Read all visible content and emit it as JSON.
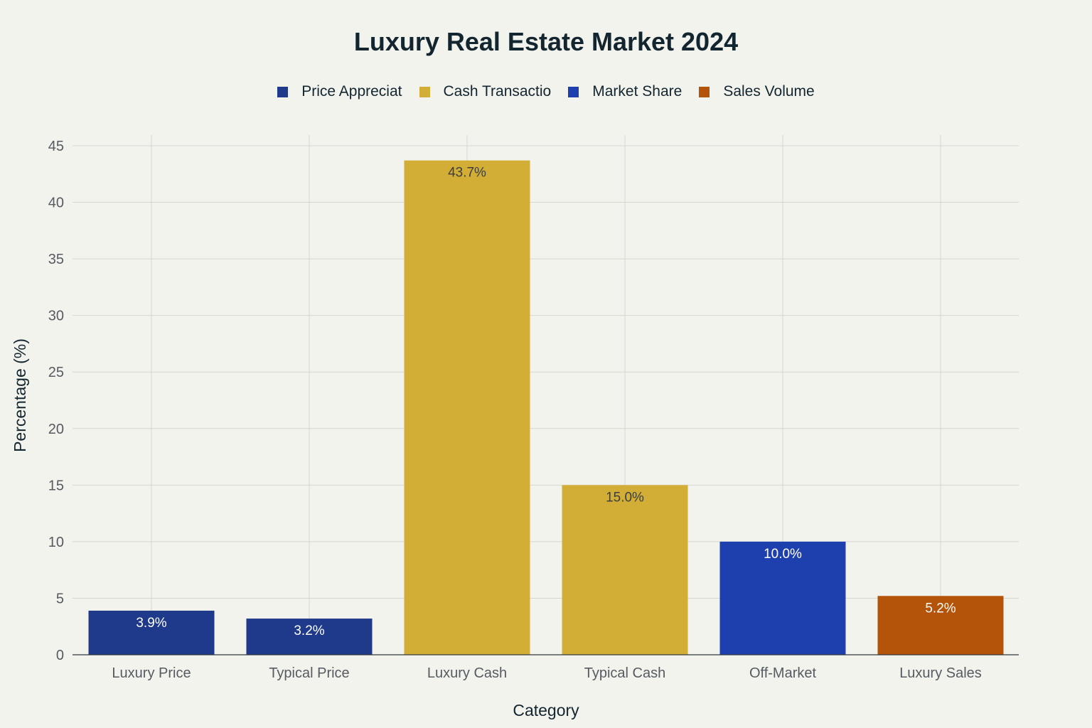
{
  "chart_data": {
    "type": "bar",
    "title": "Luxury Real Estate Market 2024",
    "xlabel": "Category",
    "ylabel": "Percentage (%)",
    "ylim": [
      0,
      45
    ],
    "yticks": [
      0,
      5,
      10,
      15,
      20,
      25,
      30,
      35,
      40,
      45
    ],
    "grid": true,
    "legend_position": "top-center",
    "categories": [
      "Luxury Price",
      "Typical Price",
      "Luxury Cash",
      "Typical Cash",
      "Off-Market",
      "Luxury Sales"
    ],
    "values": [
      3.9,
      3.2,
      43.7,
      15.0,
      10.0,
      5.2
    ],
    "data_labels": [
      "3.9%",
      "3.2%",
      "43.7%",
      "15.0%",
      "10.0%",
      "5.2%"
    ],
    "bar_series": [
      0,
      0,
      1,
      1,
      2,
      3
    ],
    "series": [
      {
        "name": "Price Appreciat",
        "color": "#1f3a8a"
      },
      {
        "name": "Cash Transactio",
        "color": "#d2ae37"
      },
      {
        "name": "Market Share",
        "color": "#1e40af"
      },
      {
        "name": "Sales Volume",
        "color": "#b4530a"
      }
    ],
    "label_colors": [
      "#ffffff",
      "#ffffff",
      "#3d3d3d",
      "#3d3d3d",
      "#ffffff",
      "#ffffff"
    ]
  }
}
